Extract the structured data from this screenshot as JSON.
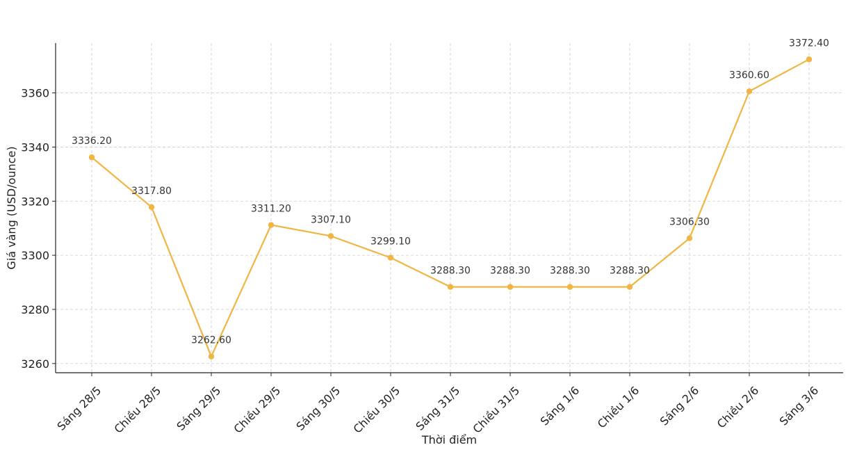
{
  "chart_data": {
    "type": "line",
    "title": "",
    "xlabel": "Thời điểm",
    "ylabel": "Giá vàng (USD/ounce)",
    "categories": [
      "Sáng 28/5",
      "Chiều 28/5",
      "Sáng 29/5",
      "Chiều 29/5",
      "Sáng 30/5",
      "Chiều 30/5",
      "Sáng 31/5",
      "Chiều 31/5",
      "Sáng 1/6",
      "Chiều 1/6",
      "Sáng 2/6",
      "Chiều 2/6",
      "Sáng 3/6"
    ],
    "series": [
      {
        "values": [
          3336.2,
          3317.8,
          3262.6,
          3311.2,
          3307.1,
          3299.1,
          3288.3,
          3288.3,
          3288.3,
          3288.3,
          3306.3,
          3360.6,
          3372.4
        ],
        "data_labels": [
          "3336.20",
          "3317.80",
          "3262.60",
          "3311.20",
          "3307.10",
          "3299.10",
          "3288.30",
          "3288.30",
          "3288.30",
          "3288.30",
          "3306.30",
          "3360.60",
          "3372.40"
        ],
        "color": "#f0b542"
      }
    ],
    "ylim": [
      3256.6,
      3378.4
    ],
    "yticks": [
      3260,
      3280,
      3300,
      3320,
      3340,
      3360
    ],
    "grid": true,
    "legend": "none"
  }
}
